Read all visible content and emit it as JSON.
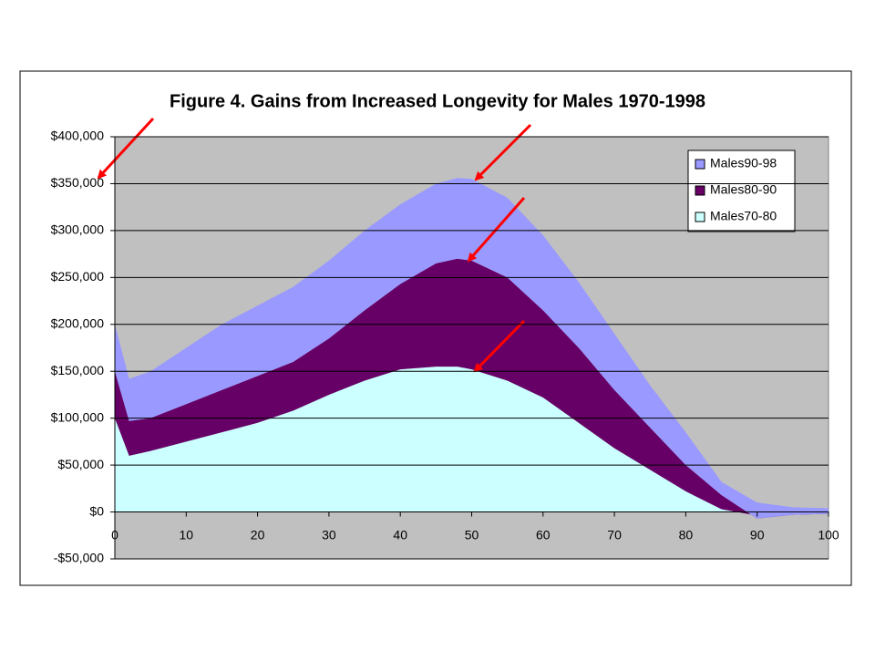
{
  "chart_data": {
    "type": "stacked_area",
    "title": "Figure 4. Gains from Increased Longevity for Males 1970-1998",
    "x": [
      0,
      2,
      5,
      10,
      15,
      20,
      25,
      30,
      35,
      40,
      45,
      48,
      50,
      55,
      60,
      65,
      70,
      75,
      80,
      85,
      90,
      95,
      100
    ],
    "series": [
      {
        "name": "Males70-80",
        "color": "#ccffff",
        "values": [
          100000,
          60000,
          65000,
          75000,
          85000,
          95000,
          108000,
          125000,
          140000,
          152000,
          155000,
          155000,
          152000,
          140000,
          122000,
          95000,
          68000,
          45000,
          22000,
          3000,
          -4000,
          -2000,
          -1000
        ]
      },
      {
        "name": "Males80-90",
        "color": "#660066",
        "values": [
          50000,
          37000,
          35000,
          40000,
          45000,
          50000,
          52000,
          60000,
          75000,
          91000,
          110000,
          115000,
          116000,
          110000,
          93000,
          80000,
          62000,
          45000,
          28000,
          15000,
          -3000,
          -1000,
          -1000
        ]
      },
      {
        "name": "Males90-98",
        "color": "#9999ff",
        "values": [
          50000,
          45000,
          50000,
          60000,
          70000,
          75000,
          80000,
          83000,
          85000,
          85000,
          85000,
          86000,
          87000,
          85000,
          80000,
          70000,
          60000,
          45000,
          35000,
          14000,
          17000,
          8000,
          6000
        ]
      }
    ],
    "xlim": [
      0,
      100
    ],
    "xticks": [
      0,
      10,
      20,
      30,
      40,
      50,
      60,
      70,
      80,
      90,
      100
    ],
    "ylim": [
      -50000,
      400000
    ],
    "yticks": [
      {
        "value": -50000,
        "label": "-$50,000"
      },
      {
        "value": 0,
        "label": "$0"
      },
      {
        "value": 50000,
        "label": "$50,000"
      },
      {
        "value": 100000,
        "label": "$100,000"
      },
      {
        "value": 150000,
        "label": "$150,000"
      },
      {
        "value": 200000,
        "label": "$200,000"
      },
      {
        "value": 250000,
        "label": "$250,000"
      },
      {
        "value": 300000,
        "label": "$300,000"
      },
      {
        "value": 350000,
        "label": "$350,000"
      },
      {
        "value": 400000,
        "label": "$400,000"
      }
    ],
    "grid": true,
    "legend": "top-right",
    "background": "#c0c0c0"
  }
}
